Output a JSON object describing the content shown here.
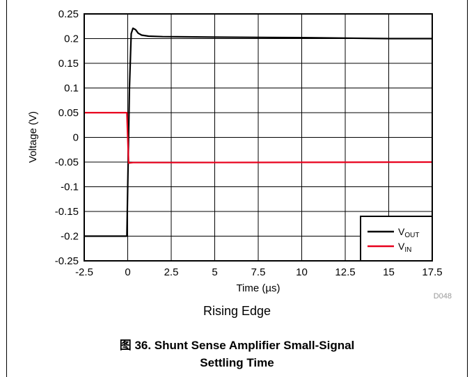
{
  "chart_data": {
    "type": "line",
    "title": "",
    "xlabel": "Time (µs)",
    "ylabel": "Voltage (V)",
    "xlim": [
      -2.5,
      17.5
    ],
    "ylim": [
      -0.25,
      0.25
    ],
    "xticks": [
      "-2.5",
      "0",
      "2.5",
      "5",
      "7.5",
      "10",
      "12.5",
      "15",
      "17.5"
    ],
    "yticks": [
      "0.25",
      "0.2",
      "0.15",
      "0.1",
      "0.05",
      "0",
      "-0.05",
      "-0.1",
      "-0.15",
      "-0.2",
      "-0.25"
    ],
    "grid": true,
    "legend_position": "bottom-right",
    "series": [
      {
        "name_main": "V",
        "name_sub": "OUT",
        "color": "#000000",
        "x": [
          -2.5,
          -0.05,
          0.0,
          0.1,
          0.2,
          0.3,
          0.45,
          0.6,
          0.8,
          1.2,
          2.0,
          5.0,
          10.0,
          15.0,
          17.5
        ],
        "y": [
          -0.2,
          -0.2,
          -0.1,
          0.1,
          0.21,
          0.221,
          0.218,
          0.211,
          0.207,
          0.205,
          0.204,
          0.203,
          0.202,
          0.2,
          0.2
        ]
      },
      {
        "name_main": "V",
        "name_sub": "IN",
        "color": "#e8001c",
        "x": [
          -2.5,
          -0.05,
          0.05,
          0.3,
          2.5,
          10.0,
          17.5
        ],
        "y": [
          0.05,
          0.05,
          -0.052,
          -0.051,
          -0.051,
          -0.0505,
          -0.05
        ]
      }
    ]
  },
  "code_label": "D048",
  "subtitle": "Rising Edge",
  "caption_line1": "图 36. Shunt Sense Amplifier Small-Signal",
  "caption_line2": "Settling Time"
}
